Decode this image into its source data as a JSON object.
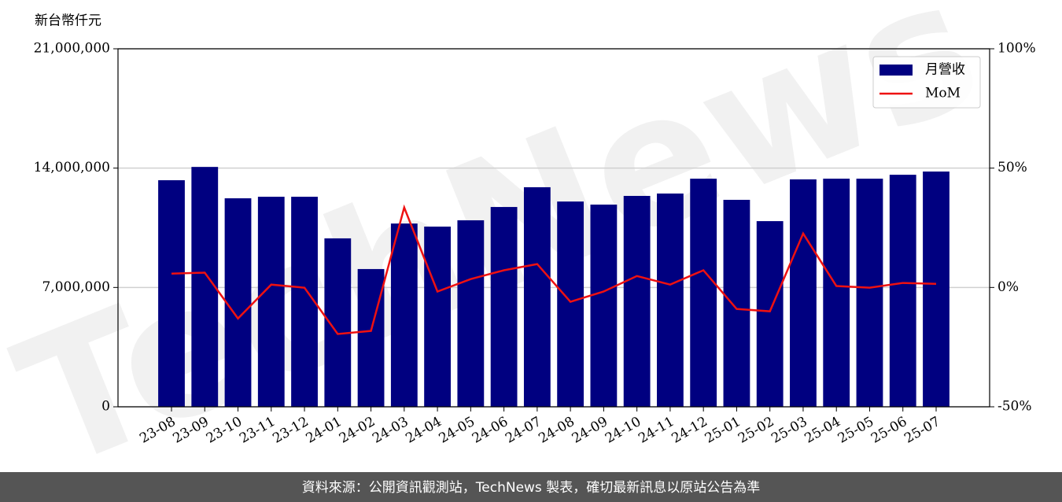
{
  "chart_data": {
    "type": "bar_line",
    "unit_label": "新台幣仟元",
    "watermark": "TechNews",
    "source_note": "資料來源：公開資訊觀測站，TechNews 製表，確切最新訊息以原站公告為準",
    "categories": [
      "23-08",
      "23-09",
      "23-10",
      "23-11",
      "23-12",
      "24-01",
      "24-02",
      "24-03",
      "24-04",
      "24-05",
      "24-06",
      "24-07",
      "24-08",
      "24-09",
      "24-10",
      "24-11",
      "24-12",
      "25-01",
      "25-02",
      "25-03",
      "25-04",
      "25-05",
      "25-06",
      "25-07"
    ],
    "series": [
      {
        "name": "月營收",
        "type": "bar",
        "color": "#000080",
        "values": [
          13290000,
          14070000,
          12230000,
          12320000,
          12320000,
          9880000,
          8080000,
          10750000,
          10570000,
          10940000,
          11720000,
          12880000,
          12040000,
          11860000,
          12370000,
          12510000,
          13380000,
          12140000,
          10890000,
          13340000,
          13380000,
          13380000,
          13610000,
          13800000
        ]
      },
      {
        "name": "MoM",
        "type": "line",
        "axis": "y2",
        "color": "#ee1111",
        "values": [
          5.8,
          6.2,
          -13,
          1.2,
          -0.1,
          -19.5,
          -18.2,
          33.5,
          -1.7,
          3.5,
          7.2,
          9.8,
          -6,
          -1.7,
          4.8,
          1.2,
          7.2,
          -9,
          -10,
          22.6,
          0.6,
          -0.1,
          1.9,
          1.5
        ]
      }
    ],
    "ylim": [
      0,
      21000000
    ],
    "yticks": [
      0,
      {
        "value": 7000000,
        "label": "7,000,000"
      },
      {
        "value": 14000000,
        "label": "14,000,000"
      },
      {
        "value": 21000000,
        "label": "21,000,000"
      }
    ],
    "y2lim": [
      -50,
      100
    ],
    "y2ticks": [
      {
        "value": -50,
        "label": "-50%"
      },
      {
        "value": 0,
        "label": "0%"
      },
      {
        "value": 50,
        "label": "50%"
      },
      {
        "value": 100,
        "label": "100%"
      }
    ],
    "grid": true,
    "legend": "upper right"
  }
}
